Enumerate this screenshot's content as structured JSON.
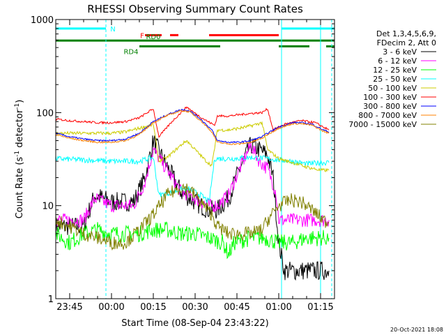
{
  "chart_data": {
    "type": "line",
    "title": "RHESSI Observing Summary Count Rates",
    "xlabel": "Start Time (08-Sep-04 23:43:22)",
    "ylabel": "Count Rate (s⁻¹ detector⁻¹)",
    "yscale": "log",
    "ylim": [
      1,
      1000
    ],
    "xlim_minutes_from_2340": [
      0,
      100
    ],
    "x_ticks": [
      {
        "label": "23:45",
        "minute": 5
      },
      {
        "label": "00:00",
        "minute": 20
      },
      {
        "label": "00:15",
        "minute": 35
      },
      {
        "label": "00:30",
        "minute": 50
      },
      {
        "label": "00:45",
        "minute": 65
      },
      {
        "label": "01:00",
        "minute": 80
      },
      {
        "label": "01:15",
        "minute": 95
      }
    ],
    "y_ticks": [
      {
        "label": "1",
        "value": 1
      },
      {
        "label": "10",
        "value": 10
      },
      {
        "label": "100",
        "value": 100
      },
      {
        "label": "1000",
        "value": 1000
      }
    ],
    "legend_header": [
      "Det 1,3,4,5,6,9,",
      "FDecim 2, Att 0"
    ],
    "legend_placement": "right",
    "series": [
      {
        "name": "3 - 6 keV",
        "color": "#000000",
        "points": [
          [
            0,
            6
          ],
          [
            10,
            6
          ],
          [
            14,
            13
          ],
          [
            20,
            11
          ],
          [
            28,
            11
          ],
          [
            32,
            20
          ],
          [
            35,
            50
          ],
          [
            40,
            26
          ],
          [
            45,
            14
          ],
          [
            48,
            12
          ],
          [
            52,
            10
          ],
          [
            55,
            9
          ],
          [
            58,
            9
          ],
          [
            62,
            12
          ],
          [
            66,
            25
          ],
          [
            70,
            45
          ],
          [
            73,
            40
          ],
          [
            76,
            35
          ],
          [
            78,
            20
          ],
          [
            80,
            4
          ],
          [
            82,
            2
          ],
          [
            86,
            2
          ],
          [
            90,
            2
          ],
          [
            94,
            2
          ],
          [
            98,
            2
          ]
        ]
      },
      {
        "name": "6 - 12 keV",
        "color": "#ff00ff",
        "points": [
          [
            0,
            7
          ],
          [
            10,
            7
          ],
          [
            14,
            12
          ],
          [
            20,
            10
          ],
          [
            28,
            10
          ],
          [
            32,
            18
          ],
          [
            35,
            40
          ],
          [
            40,
            24
          ],
          [
            45,
            14
          ],
          [
            48,
            13
          ],
          [
            52,
            11
          ],
          [
            55,
            10
          ],
          [
            58,
            10
          ],
          [
            62,
            13
          ],
          [
            66,
            25
          ],
          [
            70,
            45
          ],
          [
            73,
            30
          ],
          [
            76,
            25
          ],
          [
            79,
            14
          ],
          [
            80,
            7
          ],
          [
            85,
            7
          ],
          [
            90,
            7
          ],
          [
            95,
            7
          ],
          [
            98,
            7
          ]
        ]
      },
      {
        "name": "12 - 25 keV",
        "color": "#00ff00",
        "points": [
          [
            0,
            5
          ],
          [
            5,
            4
          ],
          [
            10,
            5
          ],
          [
            15,
            5.5
          ],
          [
            20,
            5
          ],
          [
            25,
            5
          ],
          [
            30,
            5
          ],
          [
            35,
            5.5
          ],
          [
            40,
            5.5
          ],
          [
            45,
            5
          ],
          [
            50,
            5
          ],
          [
            55,
            4.5
          ],
          [
            60,
            4
          ],
          [
            62,
            3
          ],
          [
            64,
            4
          ],
          [
            70,
            4.5
          ],
          [
            75,
            4.5
          ],
          [
            80,
            4
          ],
          [
            85,
            4
          ],
          [
            90,
            4.5
          ],
          [
            95,
            4.5
          ],
          [
            98,
            4.5
          ]
        ]
      },
      {
        "name": "25 - 50 keV",
        "color": "#00ffff",
        "points": [
          [
            0,
            32
          ],
          [
            10,
            31
          ],
          [
            20,
            30
          ],
          [
            30,
            30
          ],
          [
            35,
            33
          ],
          [
            37,
            13
          ],
          [
            42,
            14
          ],
          [
            45,
            15
          ],
          [
            48,
            15
          ],
          [
            52,
            13
          ],
          [
            55,
            11
          ],
          [
            57,
            32
          ],
          [
            63,
            32
          ],
          [
            70,
            33
          ],
          [
            76,
            32
          ],
          [
            80,
            31
          ],
          [
            85,
            30
          ],
          [
            90,
            28
          ],
          [
            95,
            29
          ],
          [
            98,
            29
          ]
        ]
      },
      {
        "name": "50 - 100 keV",
        "color": "#cccc00",
        "points": [
          [
            0,
            60
          ],
          [
            5,
            60
          ],
          [
            10,
            60
          ],
          [
            15,
            60
          ],
          [
            20,
            60
          ],
          [
            25,
            62
          ],
          [
            30,
            68
          ],
          [
            35,
            75
          ],
          [
            37,
            30
          ],
          [
            40,
            33
          ],
          [
            45,
            45
          ],
          [
            47,
            50
          ],
          [
            50,
            40
          ],
          [
            54,
            30
          ],
          [
            56,
            27
          ],
          [
            58,
            65
          ],
          [
            62,
            65
          ],
          [
            66,
            68
          ],
          [
            70,
            72
          ],
          [
            74,
            78
          ],
          [
            76,
            40
          ],
          [
            80,
            32
          ],
          [
            85,
            29
          ],
          [
            90,
            26
          ],
          [
            95,
            24
          ],
          [
            98,
            24
          ]
        ]
      },
      {
        "name": "100 - 300 keV",
        "color": "#ff0000",
        "points": [
          [
            0,
            85
          ],
          [
            5,
            82
          ],
          [
            10,
            80
          ],
          [
            15,
            78
          ],
          [
            20,
            78
          ],
          [
            25,
            80
          ],
          [
            30,
            88
          ],
          [
            35,
            110
          ],
          [
            37,
            55
          ],
          [
            42,
            82
          ],
          [
            47,
            115
          ],
          [
            50,
            98
          ],
          [
            54,
            82
          ],
          [
            57,
            73
          ],
          [
            58,
            92
          ],
          [
            62,
            92
          ],
          [
            66,
            95
          ],
          [
            70,
            98
          ],
          [
            74,
            100
          ],
          [
            76,
            110
          ],
          [
            78,
            65
          ],
          [
            82,
            75
          ],
          [
            88,
            82
          ],
          [
            93,
            78
          ],
          [
            96,
            70
          ],
          [
            98,
            65
          ]
        ]
      },
      {
        "name": "300 - 800 keV",
        "color": "#0000ff",
        "points": [
          [
            0,
            60
          ],
          [
            5,
            55
          ],
          [
            10,
            52
          ],
          [
            15,
            50
          ],
          [
            20,
            50
          ],
          [
            25,
            52
          ],
          [
            30,
            60
          ],
          [
            35,
            80
          ],
          [
            40,
            95
          ],
          [
            45,
            108
          ],
          [
            48,
            105
          ],
          [
            52,
            85
          ],
          [
            56,
            65
          ],
          [
            58,
            50
          ],
          [
            62,
            48
          ],
          [
            66,
            48
          ],
          [
            70,
            50
          ],
          [
            74,
            55
          ],
          [
            76,
            60
          ],
          [
            80,
            70
          ],
          [
            85,
            78
          ],
          [
            88,
            78
          ],
          [
            92,
            75
          ],
          [
            96,
            65
          ],
          [
            98,
            62
          ]
        ]
      },
      {
        "name": "800 - 7000 keV",
        "color": "#ff8000",
        "points": [
          [
            0,
            58
          ],
          [
            5,
            53
          ],
          [
            10,
            50
          ],
          [
            15,
            48
          ],
          [
            20,
            48
          ],
          [
            25,
            50
          ],
          [
            30,
            58
          ],
          [
            35,
            78
          ],
          [
            40,
            93
          ],
          [
            45,
            105
          ],
          [
            48,
            102
          ],
          [
            52,
            82
          ],
          [
            56,
            62
          ],
          [
            58,
            48
          ],
          [
            62,
            46
          ],
          [
            66,
            46
          ],
          [
            70,
            48
          ],
          [
            74,
            53
          ],
          [
            76,
            58
          ],
          [
            80,
            68
          ],
          [
            85,
            76
          ],
          [
            88,
            76
          ],
          [
            92,
            73
          ],
          [
            96,
            63
          ],
          [
            98,
            60
          ]
        ]
      },
      {
        "name": "7000 - 15000 keV",
        "color": "#808000",
        "points": [
          [
            0,
            7
          ],
          [
            5,
            6
          ],
          [
            10,
            5
          ],
          [
            15,
            4.5
          ],
          [
            20,
            4
          ],
          [
            25,
            4
          ],
          [
            30,
            5.5
          ],
          [
            35,
            8
          ],
          [
            40,
            13
          ],
          [
            45,
            16
          ],
          [
            48,
            15
          ],
          [
            52,
            11
          ],
          [
            56,
            8
          ],
          [
            58,
            6
          ],
          [
            62,
            5
          ],
          [
            66,
            5
          ],
          [
            70,
            5
          ],
          [
            74,
            5.5
          ],
          [
            76,
            7
          ],
          [
            80,
            10
          ],
          [
            84,
            11.5
          ],
          [
            88,
            11
          ],
          [
            92,
            9
          ],
          [
            96,
            7
          ],
          [
            98,
            6.5
          ]
        ]
      }
    ],
    "flag_bars": [
      {
        "label": "N",
        "color": "#00ffff",
        "label_minute": 20.5,
        "value": 800,
        "segments": [
          [
            0,
            18
          ],
          [
            81,
            100
          ]
        ]
      },
      {
        "label": "F",
        "color": "#ff0000",
        "label_minute": 31,
        "value": 680,
        "segments": [
          [
            32,
            38
          ],
          [
            41,
            44
          ],
          [
            55,
            80
          ]
        ]
      },
      {
        "label": "RD0",
        "color": "#008000",
        "label_minute": 35,
        "value": 595,
        "segments": [
          [
            0,
            100
          ]
        ]
      },
      {
        "label": "RD4",
        "color": "#008000",
        "label_minute": 27,
        "value": 515,
        "segments": [
          [
            30,
            59
          ],
          [
            80,
            91
          ],
          [
            97,
            100
          ]
        ]
      }
    ],
    "vertical_lines": [
      {
        "minute": 0,
        "style": "solid"
      },
      {
        "minute": 18,
        "style": "dashed"
      },
      {
        "minute": 81,
        "style": "solid"
      },
      {
        "minute": 95,
        "style": "solid"
      },
      {
        "minute": 99,
        "style": "dashed"
      }
    ],
    "grid": false,
    "timestamp": "20-Oct-2021 18:08"
  }
}
